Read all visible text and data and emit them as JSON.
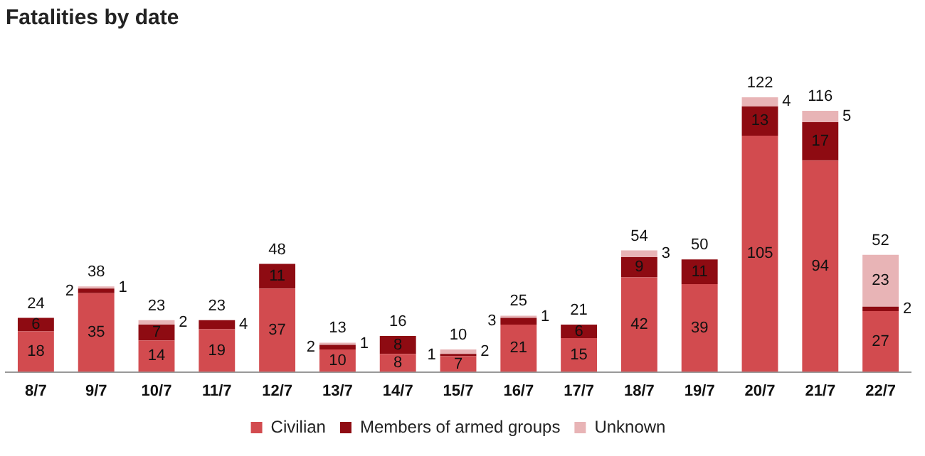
{
  "chart_data": {
    "type": "bar",
    "title": "Fatalities by date",
    "stacked": true,
    "data_labels": true,
    "legend": "bottom",
    "grid": false,
    "categories": [
      "8/7",
      "9/7",
      "10/7",
      "11/7",
      "12/7",
      "13/7",
      "14/7",
      "15/7",
      "16/7",
      "17/7",
      "18/7",
      "19/7",
      "20/7",
      "21/7",
      "22/7"
    ],
    "series": [
      {
        "name": "Civilian",
        "color": "#d24b4f",
        "values": [
          18,
          35,
          14,
          19,
          37,
          10,
          8,
          7,
          21,
          15,
          42,
          39,
          105,
          94,
          27
        ]
      },
      {
        "name": "Members of armed groups",
        "color": "#8e0b12",
        "values": [
          6,
          2,
          7,
          4,
          11,
          2,
          8,
          1,
          3,
          6,
          9,
          11,
          13,
          17,
          2
        ]
      },
      {
        "name": "Unknown",
        "color": "#e8b4b6",
        "values": [
          null,
          1,
          2,
          null,
          null,
          1,
          null,
          2,
          1,
          null,
          3,
          null,
          4,
          5,
          23
        ]
      }
    ],
    "totals": [
      "24",
      "38",
      "23",
      "23",
      "48",
      "13",
      "16",
      "10",
      "25",
      "21",
      "54",
      "50",
      "122",
      "116",
      "52"
    ]
  }
}
